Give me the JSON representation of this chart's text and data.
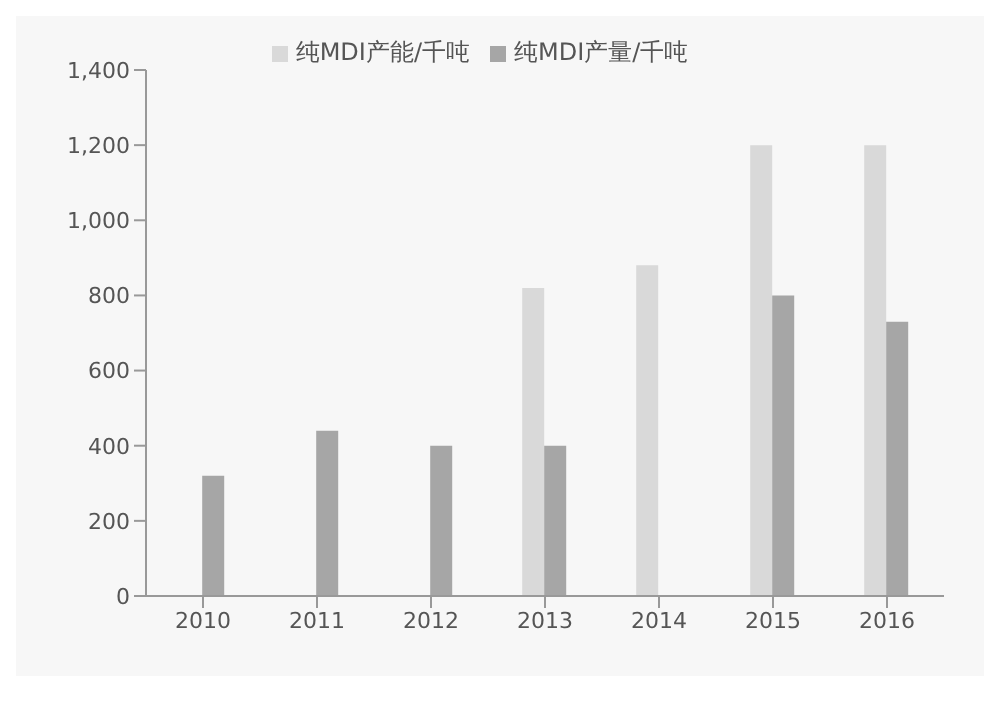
{
  "chart_data": {
    "type": "bar",
    "categories": [
      "2010",
      "2011",
      "2012",
      "2013",
      "2014",
      "2015",
      "2016"
    ],
    "series": [
      {
        "name": "纯MDI产能/千吨",
        "color": "#d9d9d9",
        "values": [
          null,
          null,
          null,
          820,
          880,
          1200,
          1200
        ]
      },
      {
        "name": "纯MDI产量/千吨",
        "color": "#a6a6a6",
        "values": [
          320,
          440,
          400,
          400,
          null,
          800,
          730
        ]
      }
    ],
    "ylim": [
      0,
      1400
    ],
    "yticks": [
      0,
      200,
      400,
      600,
      800,
      {
        "value": 1000,
        "label": "1,000"
      },
      {
        "value": 1200,
        "label": "1,200"
      },
      {
        "value": 1400,
        "label": "1,400"
      }
    ],
    "grid": false,
    "legend": "top"
  }
}
